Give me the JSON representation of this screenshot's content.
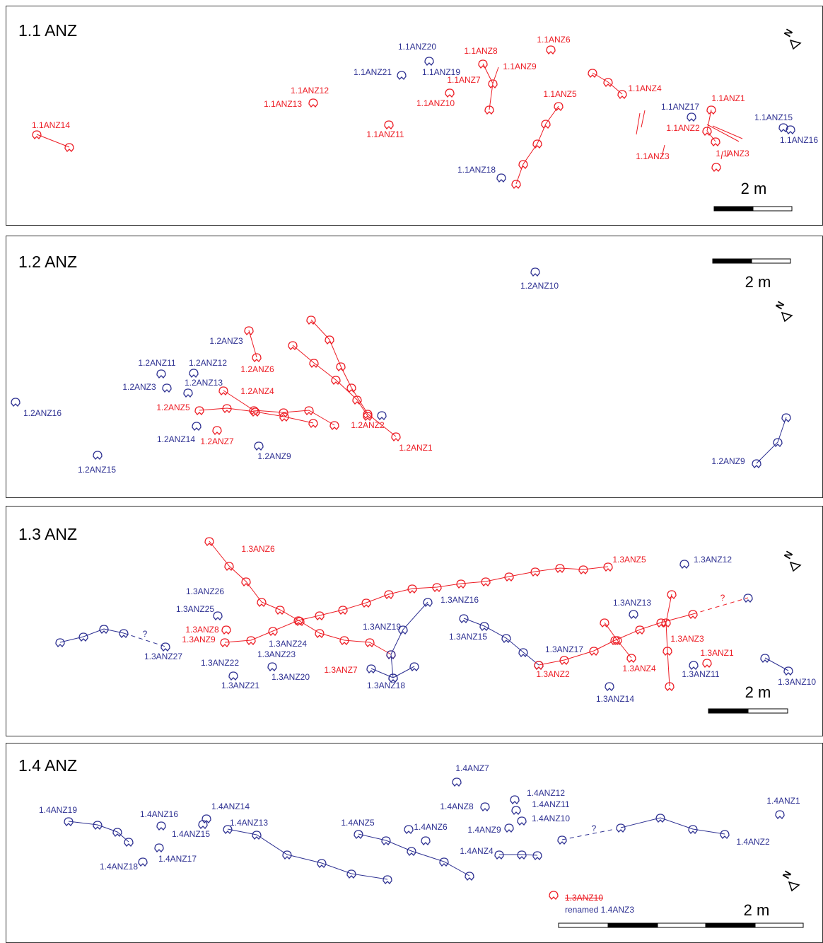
{
  "panels": [
    {
      "title": "1.1 ANZ",
      "north": "N",
      "scale": "2 m",
      "labels": [
        "1.1ANZ14",
        "1.1ANZ12",
        "1.1ANZ13",
        "1.1ANZ20",
        "1.1ANZ21",
        "1.1ANZ19",
        "1.1ANZ8",
        "1.1ANZ9",
        "1.1ANZ7",
        "1.1ANZ10",
        "1.1ANZ11",
        "1.1ANZ6",
        "1.1ANZ5",
        "1.1ANZ18",
        "1.1ANZ4",
        "1.1ANZ17",
        "1.1ANZ1",
        "1.1ANZ2",
        "1.1ANZ3",
        "1.1ANZ3",
        "1.1ANZ15",
        "1.1ANZ16"
      ]
    },
    {
      "title": "1.2 ANZ",
      "north": "N",
      "scale": "2 m",
      "labels": [
        "1.2ANZ10",
        "1.2ANZ3",
        "1.2ANZ6",
        "1.2ANZ11",
        "1.2ANZ12",
        "1.2ANZ3",
        "1.2ANZ13",
        "1.2ANZ4",
        "1.2ANZ5",
        "1.2ANZ16",
        "1.2ANZ14",
        "1.2ANZ7",
        "1.2ANZ9",
        "1.2ANZ2",
        "1.2ANZ1",
        "1.2ANZ15",
        "1.2ANZ9"
      ]
    },
    {
      "title": "1.3 ANZ",
      "north": "N",
      "scale": "2 m",
      "labels": [
        "1.3ANZ6",
        "1.3ANZ5",
        "1.3ANZ12",
        "1.3ANZ26",
        "1.3ANZ16",
        "1.3ANZ13",
        "1.3ANZ25",
        "1.3ANZ19",
        "1.3ANZ8",
        "1.3ANZ9",
        "1.3ANZ15",
        "1.3ANZ3",
        "1.3ANZ24",
        "1.3ANZ23",
        "1.3ANZ27",
        "1.3ANZ17",
        "1.3ANZ1",
        "1.3ANZ22",
        "1.3ANZ7",
        "1.3ANZ4",
        "1.3ANZ2",
        "1.3ANZ11",
        "1.3ANZ20",
        "1.3ANZ21",
        "1.3ANZ18",
        "1.3ANZ14",
        "1.3ANZ10",
        "?",
        "?"
      ]
    },
    {
      "title": "1.4 ANZ",
      "north": "N",
      "scale": "2 m",
      "labels": [
        "1.4ANZ7",
        "1.4ANZ12",
        "1.4ANZ11",
        "1.4ANZ10",
        "1.4ANZ8",
        "1.4ANZ1",
        "1.4ANZ19",
        "1.4ANZ16",
        "1.4ANZ14",
        "1.4ANZ13",
        "1.4ANZ15",
        "1.4ANZ5",
        "1.4ANZ6",
        "1.4ANZ9",
        "1.4ANZ4",
        "1.4ANZ2",
        "1.4ANZ17",
        "1.4ANZ18",
        "?"
      ]
    }
  ],
  "note": {
    "old": "1.3ANZ10",
    "new": "renamed 1.4ANZ3"
  }
}
